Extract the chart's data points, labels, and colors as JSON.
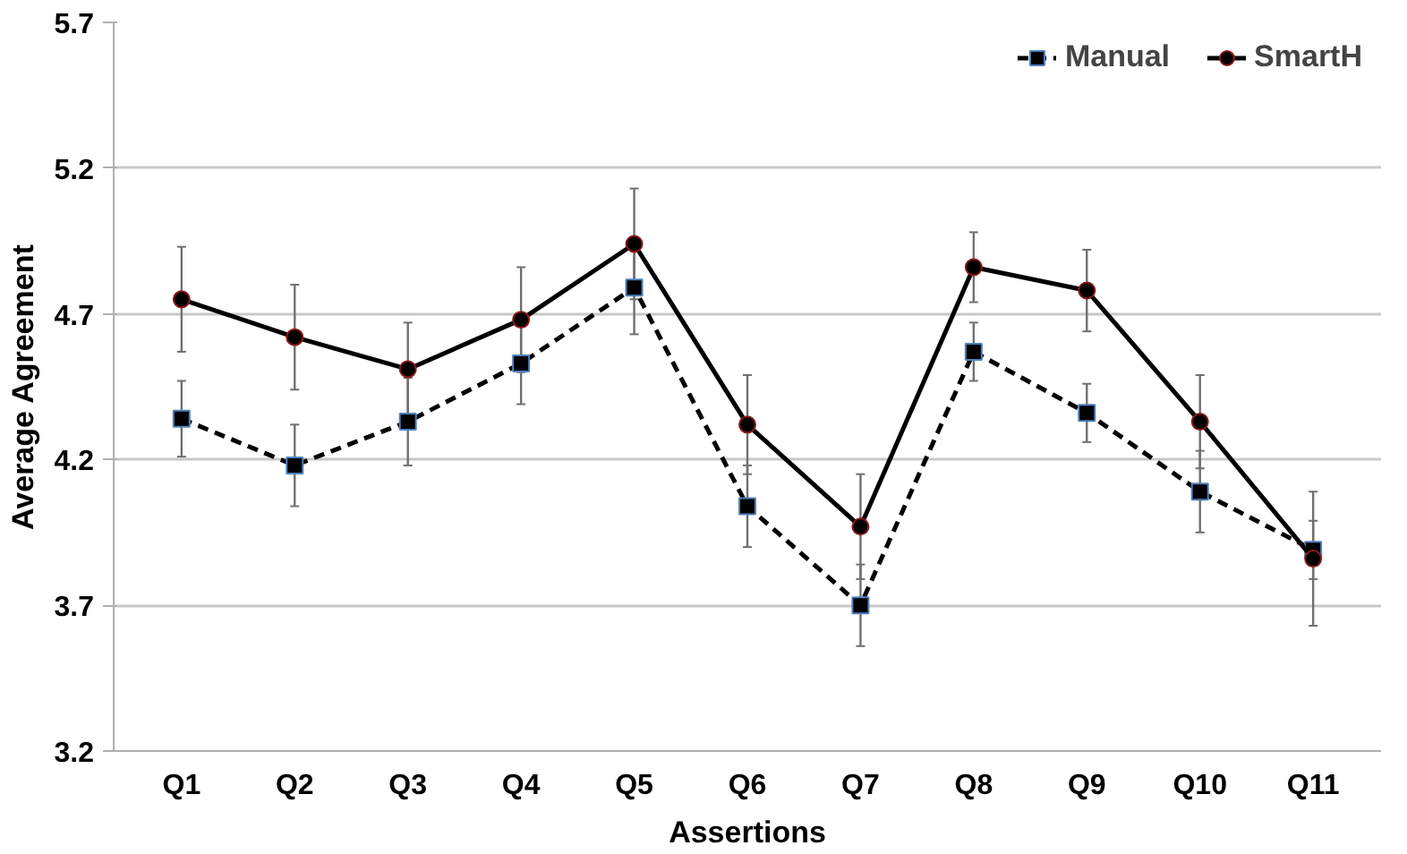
{
  "chart_data": {
    "type": "line",
    "xlabel": "Assertions",
    "ylabel": "Average Agreement",
    "categories": [
      "Q1",
      "Q2",
      "Q3",
      "Q4",
      "Q5",
      "Q6",
      "Q7",
      "Q8",
      "Q9",
      "Q10",
      "Q11"
    ],
    "series": [
      {
        "name": "Manual",
        "color": "#000000",
        "marker": "square",
        "line_style": "dashed",
        "values": [
          4.34,
          4.18,
          4.33,
          4.53,
          4.79,
          4.04,
          3.7,
          4.57,
          4.36,
          4.09,
          3.89
        ],
        "errors": [
          0.13,
          0.14,
          0.15,
          0.14,
          0.16,
          0.14,
          0.14,
          0.1,
          0.1,
          0.14,
          0.1
        ]
      },
      {
        "name": "SmartH",
        "color": "#000000",
        "marker": "circle",
        "line_style": "solid",
        "values": [
          4.75,
          4.62,
          4.51,
          4.68,
          4.94,
          4.32,
          3.97,
          4.86,
          4.78,
          4.33,
          3.86
        ],
        "errors": [
          0.18,
          0.18,
          0.16,
          0.18,
          0.19,
          0.17,
          0.18,
          0.12,
          0.14,
          0.16,
          0.23
        ]
      }
    ],
    "ylim": [
      3.2,
      5.7
    ],
    "yticks": [
      3.2,
      3.7,
      4.2,
      4.7,
      5.2,
      5.7
    ],
    "grid": "y",
    "legend": "top right"
  }
}
